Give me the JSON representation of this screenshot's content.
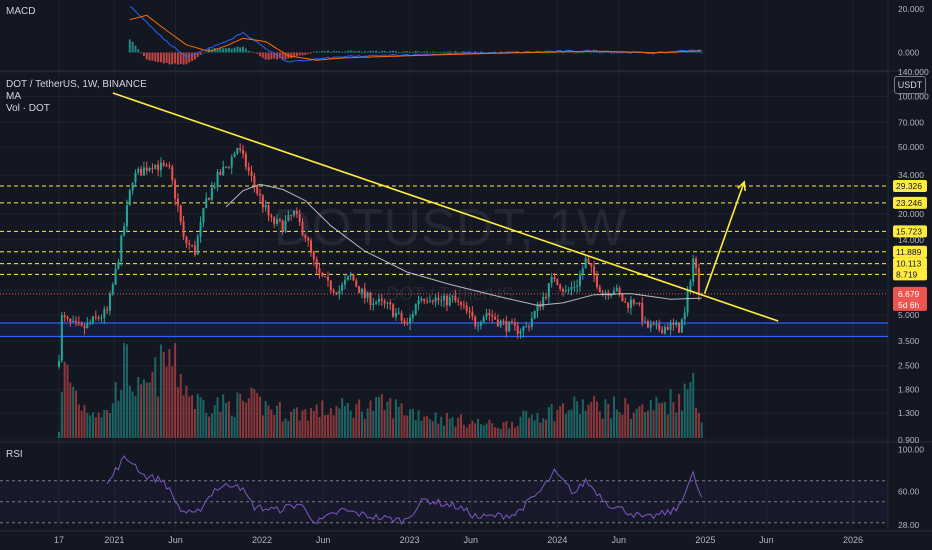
{
  "symbol_line": "DOT / TetherUS, 1W, BINANCE",
  "indicator_ma": "MA",
  "indicator_vol": "Vol · DOT",
  "indicator_macd": "MACD",
  "indicator_rsi": "RSI",
  "currency_button": "USDT",
  "watermark": "DOTUSDT, 1W",
  "watermark_sub": "DOT / TetherUS",
  "colors": {
    "background": "#131722",
    "up": "#26a69a",
    "down": "#ef5350",
    "trendline": "#ffeb3b",
    "level_line": "#ffeb3b",
    "support_band": "#2962ff",
    "ma_line": "#d1d4dc",
    "rsi_line": "#7e57c2",
    "macd_line": "#2962ff",
    "signal_line": "#ff6d00"
  },
  "chart_data": [
    {
      "type": "candlestick",
      "title": "DOT / TetherUS, 1W, BINANCE",
      "scale": "log",
      "ylim": [
        0.9,
        140
      ],
      "y_ticks": [
        0.9,
        1.3,
        1.8,
        2.5,
        3.5,
        5.0,
        7.0,
        10.0,
        14.0,
        20.0,
        34.0,
        50.0,
        70.0,
        100.0,
        140.0
      ],
      "y_tick_labels": [
        "0.900",
        "1.300",
        "1.800",
        "2.500",
        "3.500",
        "5.000",
        "7.000",
        "10.000",
        "14.000",
        "20.000",
        "34.000",
        "50.000",
        "70.000",
        "100.000",
        "140.000"
      ],
      "x_tick_labels": [
        "17",
        "2021",
        "Jun",
        "2022",
        "Jun",
        "2023",
        "Jun",
        "2024",
        "Jun",
        "2025",
        "Jun",
        "2026"
      ],
      "x_tick_dates": [
        "2020-08-17",
        "2021-01-01",
        "2021-06-01",
        "2022-01-01",
        "2022-06-01",
        "2023-01-01",
        "2023-06-01",
        "2024-01-01",
        "2024-06-01",
        "2025-01-01",
        "2025-06-01",
        "2026-01-01"
      ],
      "price_path": [
        [
          "2020-08-17",
          2.9
        ],
        [
          "2020-08-24",
          4.8
        ],
        [
          "2020-09-14",
          4.4
        ],
        [
          "2020-10-12",
          4.1
        ],
        [
          "2020-11-09",
          4.6
        ],
        [
          "2020-12-14",
          5.2
        ],
        [
          "2021-01-04",
          9.0
        ],
        [
          "2021-01-25",
          17.0
        ],
        [
          "2021-02-15",
          33.0
        ],
        [
          "2021-03-08",
          36.0
        ],
        [
          "2021-04-05",
          40.0
        ],
        [
          "2021-04-26",
          38.0
        ],
        [
          "2021-05-17",
          36.0
        ],
        [
          "2021-06-07",
          22.0
        ],
        [
          "2021-06-21",
          14.0
        ],
        [
          "2021-07-19",
          12.0
        ],
        [
          "2021-08-16",
          24.0
        ],
        [
          "2021-09-13",
          33.0
        ],
        [
          "2021-10-11",
          40.0
        ],
        [
          "2021-11-01",
          50.0
        ],
        [
          "2021-11-22",
          39.0
        ],
        [
          "2021-12-20",
          27.0
        ],
        [
          "2022-01-24",
          18.0
        ],
        [
          "2022-02-21",
          17.0
        ],
        [
          "2022-03-21",
          20.0
        ],
        [
          "2022-04-18",
          15.0
        ],
        [
          "2022-05-16",
          9.0
        ],
        [
          "2022-06-13",
          7.5
        ],
        [
          "2022-07-11",
          7.0
        ],
        [
          "2022-08-08",
          8.5
        ],
        [
          "2022-09-12",
          6.4
        ],
        [
          "2022-10-10",
          6.0
        ],
        [
          "2022-11-14",
          5.5
        ],
        [
          "2022-12-26",
          4.3
        ],
        [
          "2023-01-23",
          6.3
        ],
        [
          "2023-02-20",
          6.5
        ],
        [
          "2023-03-20",
          6.0
        ],
        [
          "2023-04-17",
          6.2
        ],
        [
          "2023-05-15",
          5.4
        ],
        [
          "2023-06-12",
          4.5
        ],
        [
          "2023-07-10",
          5.2
        ],
        [
          "2023-08-14",
          4.5
        ],
        [
          "2023-09-18",
          4.1
        ],
        [
          "2023-10-16",
          4.2
        ],
        [
          "2023-11-13",
          5.5
        ],
        [
          "2023-12-25",
          8.5
        ],
        [
          "2024-01-22",
          6.8
        ],
        [
          "2024-02-19",
          7.8
        ],
        [
          "2024-03-11",
          10.5
        ],
        [
          "2024-04-01",
          8.5
        ],
        [
          "2024-04-22",
          6.8
        ],
        [
          "2024-05-20",
          7.2
        ],
        [
          "2024-06-17",
          5.8
        ],
        [
          "2024-07-15",
          6.2
        ],
        [
          "2024-08-05",
          4.3
        ],
        [
          "2024-09-02",
          4.1
        ],
        [
          "2024-09-30",
          4.3
        ],
        [
          "2024-10-28",
          4.2
        ],
        [
          "2024-11-11",
          5.0
        ],
        [
          "2024-11-25",
          8.5
        ],
        [
          "2024-12-02",
          10.8
        ],
        [
          "2024-12-09",
          9.2
        ],
        [
          "2024-12-16",
          7.2
        ],
        [
          "2024-12-23",
          6.679
        ]
      ],
      "last_price": 6.679,
      "last_price_label": "6.679",
      "countdown_label": "5d 6h",
      "levels": [
        29.326,
        23.246,
        15.723,
        11.889,
        10.113,
        8.719
      ],
      "level_labels": [
        "29.326",
        "23.246",
        "15.723",
        "11.889",
        "10.113",
        "8.719"
      ],
      "support_band": [
        3.72,
        4.48
      ],
      "trendline": [
        [
          "2020-12-28",
          105.0
        ],
        [
          "2025-06-30",
          4.6
        ]
      ],
      "projection_arrow": [
        [
          "2024-12-30",
          6.7
        ],
        [
          "2025-04-07",
          31.0
        ]
      ],
      "moving_average_path": [
        [
          "2021-10-04",
          22.0
        ],
        [
          "2021-11-15",
          27.5
        ],
        [
          "2021-12-27",
          30.0
        ],
        [
          "2022-02-21",
          28.0
        ],
        [
          "2022-04-18",
          24.0
        ],
        [
          "2022-06-20",
          17.0
        ],
        [
          "2022-09-12",
          12.0
        ],
        [
          "2022-12-26",
          9.0
        ],
        [
          "2023-04-10",
          7.6
        ],
        [
          "2023-08-14",
          6.4
        ],
        [
          "2023-11-13",
          5.7
        ],
        [
          "2024-01-15",
          5.9
        ],
        [
          "2024-04-01",
          6.6
        ],
        [
          "2024-07-01",
          6.7
        ],
        [
          "2024-10-07",
          6.2
        ],
        [
          "2024-12-23",
          6.3
        ]
      ],
      "volume_path": [
        [
          "2020-08-17",
          0.1
        ],
        [
          "2020-08-31",
          0.85
        ],
        [
          "2020-10-12",
          0.4
        ],
        [
          "2020-12-14",
          0.3
        ],
        [
          "2021-01-04",
          0.55
        ],
        [
          "2021-01-25",
          0.95
        ],
        [
          "2021-03-08",
          0.5
        ],
        [
          "2021-05-17",
          1.0
        ],
        [
          "2021-07-19",
          0.45
        ],
        [
          "2021-10-04",
          0.4
        ],
        [
          "2021-12-06",
          0.45
        ],
        [
          "2022-03-07",
          0.3
        ],
        [
          "2022-06-13",
          0.35
        ],
        [
          "2022-11-07",
          0.4
        ],
        [
          "2023-03-13",
          0.25
        ],
        [
          "2023-08-14",
          0.15
        ],
        [
          "2023-11-13",
          0.3
        ],
        [
          "2024-03-04",
          0.4
        ],
        [
          "2024-08-05",
          0.35
        ],
        [
          "2024-11-18",
          0.55
        ],
        [
          "2024-12-02",
          0.8
        ],
        [
          "2024-12-23",
          0.2
        ]
      ]
    },
    {
      "type": "line",
      "title": "RSI",
      "ylim": [
        25,
        105
      ],
      "y_ticks": [
        28,
        60,
        100
      ],
      "y_tick_labels": [
        "28.00",
        "60.00",
        "100.00"
      ],
      "bands": [
        70,
        50,
        30
      ],
      "series": [
        {
          "values": [
            [
              "2020-12-14",
              66
            ],
            [
              "2021-01-04",
              80
            ],
            [
              "2021-01-25",
              91
            ],
            [
              "2021-02-15",
              88
            ],
            [
              "2021-03-15",
              75
            ],
            [
              "2021-05-03",
              70
            ],
            [
              "2021-06-14",
              42
            ],
            [
              "2021-07-19",
              37
            ],
            [
              "2021-09-06",
              62
            ],
            [
              "2021-11-01",
              68
            ],
            [
              "2021-12-13",
              45
            ],
            [
              "2022-02-07",
              42
            ],
            [
              "2022-04-04",
              48
            ],
            [
              "2022-05-16",
              30
            ],
            [
              "2022-07-18",
              42
            ],
            [
              "2022-09-26",
              36
            ],
            [
              "2022-12-19",
              32
            ],
            [
              "2023-02-06",
              52
            ],
            [
              "2023-05-01",
              45
            ],
            [
              "2023-06-19",
              35
            ],
            [
              "2023-09-18",
              38
            ],
            [
              "2023-11-20",
              60
            ],
            [
              "2023-12-25",
              78
            ],
            [
              "2024-02-12",
              58
            ],
            [
              "2024-03-11",
              70
            ],
            [
              "2024-05-06",
              48
            ],
            [
              "2024-08-05",
              34
            ],
            [
              "2024-10-21",
              42
            ],
            [
              "2024-12-02",
              76
            ],
            [
              "2024-12-23",
              52
            ]
          ]
        }
      ]
    },
    {
      "type": "line",
      "title": "MACD",
      "ylim": [
        -8,
        24
      ],
      "y_ticks": [
        0,
        20
      ],
      "y_tick_labels": [
        "0.000",
        "20.000"
      ],
      "series": [
        {
          "values": [
            [
              "2021-02-08",
              21.0
            ],
            [
              "2021-03-22",
              14.0
            ],
            [
              "2021-05-03",
              6.0
            ],
            [
              "2021-06-28",
              -2.0
            ],
            [
              "2021-08-23",
              2.0
            ],
            [
              "2021-10-04",
              5.0
            ],
            [
              "2021-11-15",
              9.0
            ],
            [
              "2022-01-10",
              2.0
            ],
            [
              "2022-03-07",
              -4.5
            ],
            [
              "2022-05-16",
              -3.0
            ],
            [
              "2022-07-18",
              -2.0
            ],
            [
              "2022-12-26",
              -1.0
            ],
            [
              "2023-06-26",
              -0.3
            ],
            [
              "2023-12-25",
              0.5
            ],
            [
              "2024-04-01",
              0.8
            ],
            [
              "2024-09-02",
              -0.3
            ],
            [
              "2024-12-02",
              1.2
            ],
            [
              "2024-12-23",
              0.6
            ]
          ]
        },
        {
          "values": [
            [
              "2021-02-08",
              15.0
            ],
            [
              "2021-03-22",
              17.0
            ],
            [
              "2021-05-03",
              11.0
            ],
            [
              "2021-06-28",
              3.5
            ],
            [
              "2021-08-23",
              0.5
            ],
            [
              "2021-10-04",
              3.0
            ],
            [
              "2021-11-15",
              6.5
            ],
            [
              "2022-01-10",
              5.0
            ],
            [
              "2022-03-07",
              -1.5
            ],
            [
              "2022-05-16",
              -3.5
            ],
            [
              "2022-07-18",
              -2.5
            ],
            [
              "2022-12-26",
              -1.5
            ],
            [
              "2023-06-26",
              -0.5
            ],
            [
              "2023-12-25",
              0.2
            ],
            [
              "2024-04-01",
              0.6
            ],
            [
              "2024-09-02",
              -0.1
            ],
            [
              "2024-12-02",
              0.6
            ],
            [
              "2024-12-23",
              0.7
            ]
          ]
        }
      ]
    }
  ]
}
